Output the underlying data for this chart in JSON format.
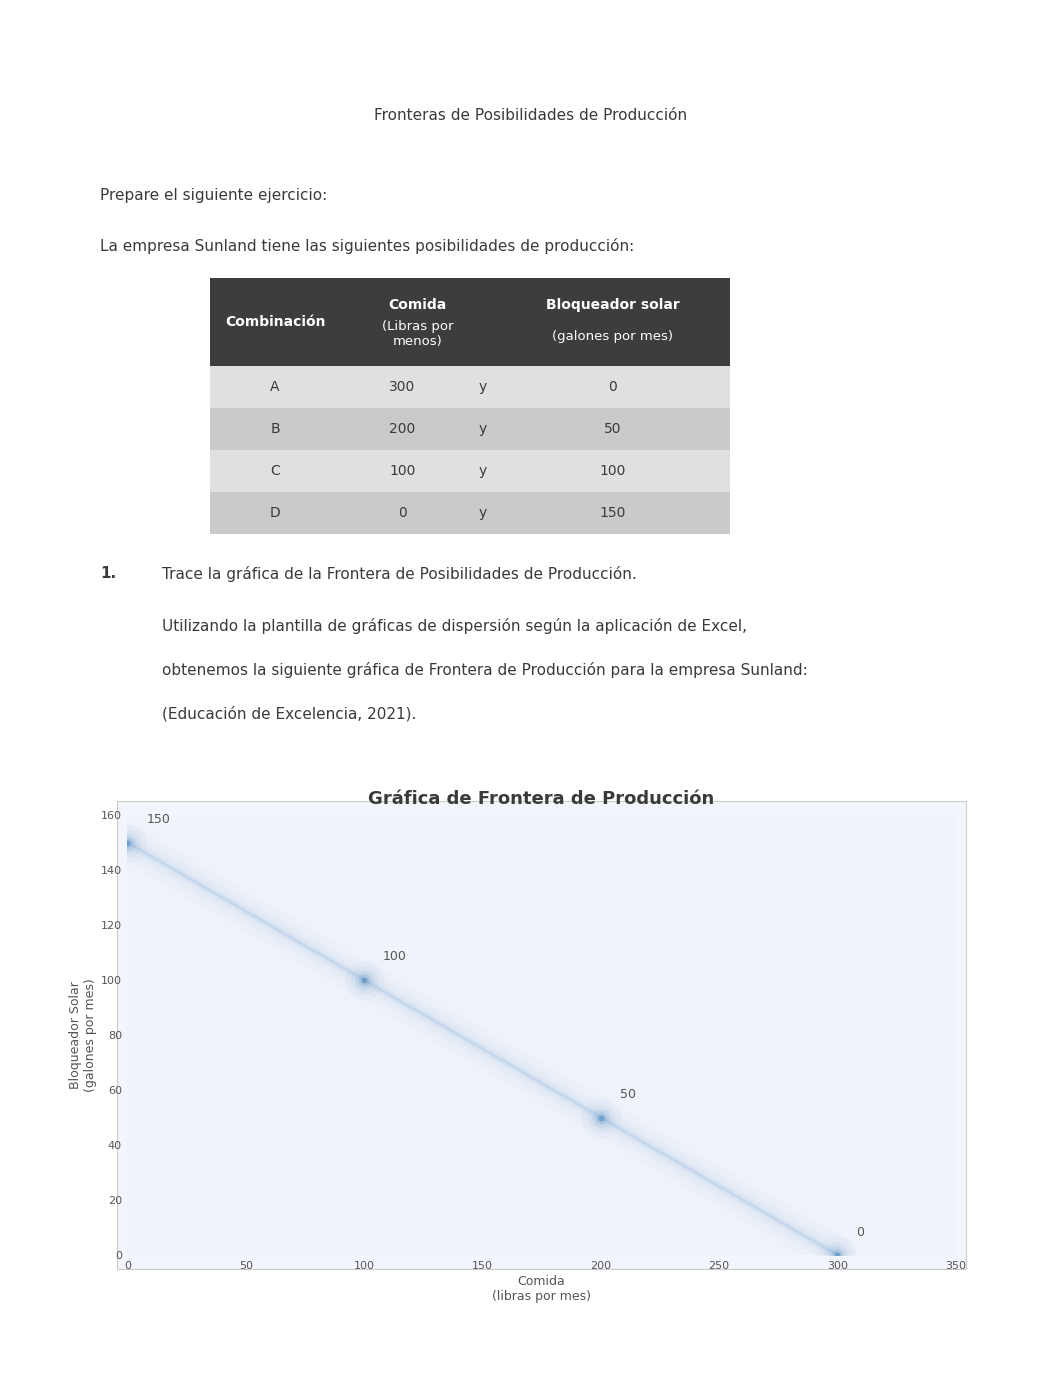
{
  "page_title": "Fronteras de Posibilidades de Producción",
  "page_bg": "#ffffff",
  "text_color": "#3a3a3a",
  "para1": "Prepare el siguiente ejercicio:",
  "para2": "La empresa Sunland tiene las siguientes posibilidades de producción:",
  "table": {
    "header_bg": "#3d3d3d",
    "header_text": "#ffffff",
    "row_bg_odd": "#e0e0e0",
    "row_bg_even": "#cacaca",
    "col1_header": "Combinación",
    "col2_header_line1": "Comida",
    "col2_header_line2": "(Libras por\nmenos)",
    "col3_header_line1": "Bloqueador solar",
    "col3_header_line2": "(galones por mes)",
    "rows": [
      {
        "combo": "A",
        "comida": "300",
        "y": "y",
        "solar": "0"
      },
      {
        "combo": "B",
        "comida": "200",
        "y": "y",
        "solar": "50"
      },
      {
        "combo": "C",
        "comida": "100",
        "y": "y",
        "solar": "100"
      },
      {
        "combo": "D",
        "comida": "0",
        "y": "y",
        "solar": "150"
      }
    ]
  },
  "item1_prefix": "1.",
  "item1_text": "Trace la gráfica de la Frontera de Posibilidades de Producción.",
  "para3_line1": "Utilizando la plantilla de gráficas de dispersión según la aplicación de Excel,",
  "para3_line2": "obtenemos la siguiente gráfica de Frontera de Producción para la empresa Sunland:",
  "para4": "(Educación de Excelencia, 2021).",
  "chart": {
    "title": "Gráfica de Frontera de Producción",
    "title_fontsize": 13,
    "title_fontweight": "bold",
    "xlabel_line1": "Comida",
    "xlabel_line2": "(libras por mes)",
    "ylabel_line1": "Bloqueador Solar",
    "ylabel_line2": "(galones por mes)",
    "x_data": [
      300,
      200,
      100,
      0
    ],
    "y_data": [
      0,
      50,
      100,
      150
    ],
    "xlim": [
      0,
      350
    ],
    "ylim": [
      0,
      160
    ],
    "xticks": [
      0,
      50,
      100,
      150,
      200,
      250,
      300,
      350
    ],
    "yticks": [
      0,
      20,
      40,
      60,
      80,
      100,
      120,
      140,
      160
    ],
    "point_labels": [
      "0",
      "50",
      "100",
      "150"
    ],
    "line_color": "#b8cfe8",
    "scatter_color": "#6a9cc8",
    "chart_bg": "#f0f4fa",
    "tick_fontsize": 8,
    "label_fontsize": 9
  }
}
